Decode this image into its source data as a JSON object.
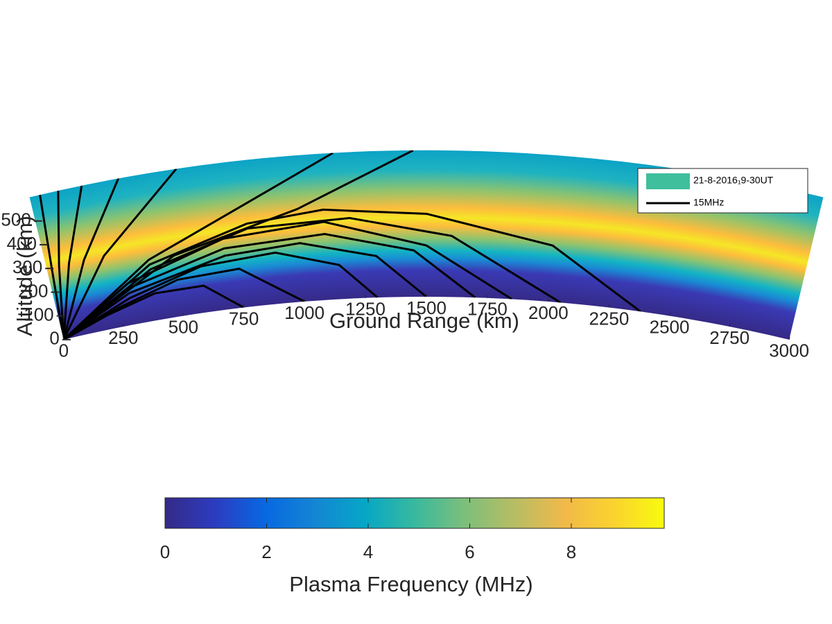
{
  "chart_data": {
    "type": "raytrace",
    "xlabel": "Ground Range (km)",
    "ylabel": "Altitude (km)",
    "xlim": [
      0,
      3000
    ],
    "ylim": [
      0,
      600
    ],
    "xticks": [
      0,
      250,
      500,
      750,
      1000,
      1250,
      1500,
      1750,
      2000,
      2250,
      2500,
      2750,
      3000
    ],
    "yticks": [
      0,
      100,
      200,
      300,
      400,
      500
    ],
    "legend": [
      {
        "name": "21-8-2016₁9-30UT",
        "color": "#3fbf9c"
      },
      {
        "name": "15MHz",
        "color": "#000000"
      }
    ],
    "rays": [
      {
        "x": [
          0,
          20,
          40
        ],
        "y": [
          0,
          300,
          600
        ]
      },
      {
        "x": [
          0,
          50,
          110
        ],
        "y": [
          0,
          300,
          600
        ]
      },
      {
        "x": [
          0,
          90,
          200
        ],
        "y": [
          0,
          300,
          600
        ]
      },
      {
        "x": [
          0,
          150,
          340
        ],
        "y": [
          0,
          300,
          600
        ]
      },
      {
        "x": [
          0,
          230,
          560
        ],
        "y": [
          0,
          300,
          600
        ]
      },
      {
        "x": [
          0,
          400,
          800,
          1150
        ],
        "y": [
          0,
          250,
          420,
          600
        ]
      },
      {
        "x": [
          0,
          500,
          1000,
          1450
        ],
        "y": [
          0,
          250,
          380,
          600
        ]
      },
      {
        "x": [
          0,
          400,
          800,
          1100,
          1500,
          2000,
          2380
        ],
        "y": [
          0,
          230,
          340,
          370,
          340,
          230,
          0
        ]
      },
      {
        "x": [
          0,
          400,
          800,
          1200,
          1600,
          2050
        ],
        "y": [
          0,
          210,
          320,
          330,
          250,
          0
        ]
      },
      {
        "x": [
          0,
          300,
          700,
          1100,
          1500,
          1850
        ],
        "y": [
          0,
          170,
          290,
          320,
          210,
          0
        ]
      },
      {
        "x": [
          0,
          300,
          700,
          1100,
          1450,
          1700
        ],
        "y": [
          0,
          150,
          250,
          270,
          190,
          0
        ]
      },
      {
        "x": [
          0,
          300,
          700,
          1000,
          1300,
          1500
        ],
        "y": [
          0,
          130,
          220,
          240,
          170,
          0
        ]
      },
      {
        "x": [
          0,
          300,
          600,
          900,
          1150,
          1300
        ],
        "y": [
          0,
          110,
          190,
          210,
          140,
          0
        ]
      },
      {
        "x": [
          0,
          250,
          500,
          750,
          1000
        ],
        "y": [
          0,
          80,
          150,
          160,
          0
        ]
      },
      {
        "x": [
          0,
          200,
          400,
          600,
          750
        ],
        "y": [
          0,
          60,
          110,
          110,
          0
        ]
      }
    ],
    "colorbar": {
      "label": "Plasma Frequency (MHz)",
      "clim": [
        0,
        9.83
      ],
      "ticks": [
        0,
        2,
        4,
        6,
        8
      ]
    }
  }
}
